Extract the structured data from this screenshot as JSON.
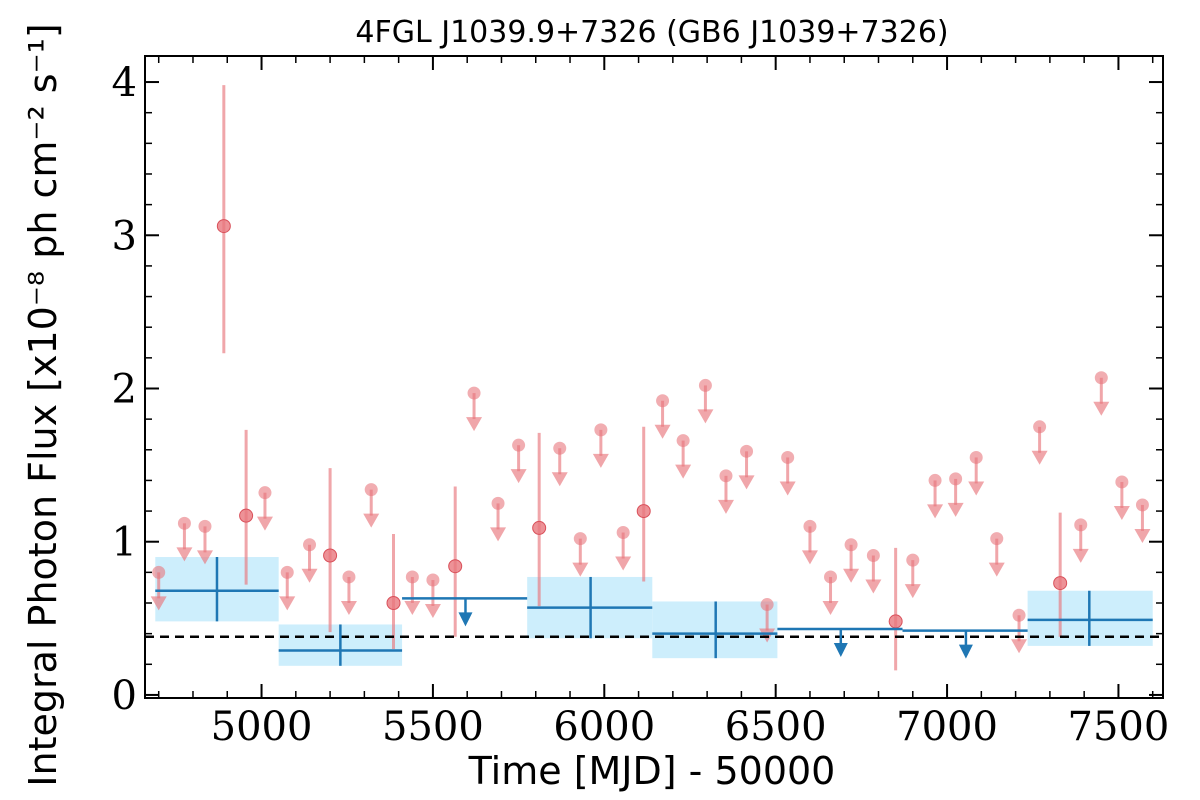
{
  "chart_data": {
    "type": "scatter",
    "title": "4FGL J1039.9+7326 (GB6 J1039+7326)",
    "xlabel": "Time [MJD] - 50000",
    "ylabel": "Integral Photon Flux [x10⁻⁸ ph cm⁻² s⁻¹]",
    "xlim": [
      4660,
      7630
    ],
    "ylim": [
      -0.02,
      4.17
    ],
    "x_ticks": [
      5000,
      5500,
      6000,
      6500,
      7000,
      7500
    ],
    "x_tick_labels": [
      "5000",
      "5500",
      "6000",
      "6500",
      "7000",
      "7500"
    ],
    "y_ticks": [
      0,
      1,
      2,
      3,
      4
    ],
    "y_tick_labels": [
      "0",
      "1",
      "2",
      "3",
      "4"
    ],
    "reference_line": {
      "y": 0.38,
      "style": "dashed",
      "color": "#000000"
    },
    "colors": {
      "short_bins": "#e8777d",
      "long_bins": "#1f77b4",
      "long_bin_band": "#cdeefc"
    },
    "short_bins": {
      "detections": [
        {
          "x": 4890,
          "y": 3.06,
          "err_low": 2.23,
          "err_high": 3.98
        },
        {
          "x": 4955,
          "y": 1.17,
          "err_low": 0.72,
          "err_high": 1.73
        },
        {
          "x": 5200,
          "y": 0.91,
          "err_low": 0.41,
          "err_high": 1.48
        },
        {
          "x": 5385,
          "y": 0.6,
          "err_low": 0.3,
          "err_high": 1.05
        },
        {
          "x": 5565,
          "y": 0.84,
          "err_low": 0.38,
          "err_high": 1.36
        },
        {
          "x": 5810,
          "y": 1.09,
          "err_low": 0.58,
          "err_high": 1.71
        },
        {
          "x": 6115,
          "y": 1.2,
          "err_low": 0.74,
          "err_high": 1.75
        },
        {
          "x": 6850,
          "y": 0.48,
          "err_low": 0.16,
          "err_high": 0.96
        },
        {
          "x": 7330,
          "y": 0.73,
          "err_low": 0.38,
          "err_high": 1.19
        }
      ],
      "upper_limits": [
        {
          "x": 4700,
          "y": 0.8
        },
        {
          "x": 4775,
          "y": 1.12
        },
        {
          "x": 4835,
          "y": 1.1
        },
        {
          "x": 5010,
          "y": 1.32
        },
        {
          "x": 5075,
          "y": 0.8
        },
        {
          "x": 5140,
          "y": 0.98
        },
        {
          "x": 5255,
          "y": 0.77
        },
        {
          "x": 5320,
          "y": 1.34
        },
        {
          "x": 5440,
          "y": 0.77
        },
        {
          "x": 5500,
          "y": 0.75
        },
        {
          "x": 5620,
          "y": 1.97
        },
        {
          "x": 5690,
          "y": 1.25
        },
        {
          "x": 5750,
          "y": 1.63
        },
        {
          "x": 5870,
          "y": 1.61
        },
        {
          "x": 5930,
          "y": 1.02
        },
        {
          "x": 5990,
          "y": 1.73
        },
        {
          "x": 6055,
          "y": 1.06
        },
        {
          "x": 6170,
          "y": 1.92
        },
        {
          "x": 6230,
          "y": 1.66
        },
        {
          "x": 6295,
          "y": 2.02
        },
        {
          "x": 6355,
          "y": 1.43
        },
        {
          "x": 6415,
          "y": 1.59
        },
        {
          "x": 6475,
          "y": 0.59
        },
        {
          "x": 6535,
          "y": 1.55
        },
        {
          "x": 6600,
          "y": 1.1
        },
        {
          "x": 6660,
          "y": 0.77
        },
        {
          "x": 6720,
          "y": 0.98
        },
        {
          "x": 6785,
          "y": 0.91
        },
        {
          "x": 6900,
          "y": 0.88
        },
        {
          "x": 6965,
          "y": 1.4
        },
        {
          "x": 7025,
          "y": 1.41
        },
        {
          "x": 7085,
          "y": 1.55
        },
        {
          "x": 7145,
          "y": 1.02
        },
        {
          "x": 7210,
          "y": 0.52
        },
        {
          "x": 7270,
          "y": 1.75
        },
        {
          "x": 7390,
          "y": 1.11
        },
        {
          "x": 7450,
          "y": 2.07
        },
        {
          "x": 7510,
          "y": 1.39
        },
        {
          "x": 7570,
          "y": 1.24
        }
      ]
    },
    "long_bins": {
      "detections": [
        {
          "x": 4870,
          "x_low": 4690,
          "x_high": 5050,
          "y": 0.68,
          "err_low": 0.48,
          "err_high": 0.9
        },
        {
          "x": 5230,
          "x_low": 5050,
          "x_high": 5410,
          "y": 0.29,
          "err_low": 0.19,
          "err_high": 0.46
        },
        {
          "x": 5960,
          "x_low": 5775,
          "x_high": 6140,
          "y": 0.57,
          "err_low": 0.37,
          "err_high": 0.77
        },
        {
          "x": 6325,
          "x_low": 6140,
          "x_high": 6505,
          "y": 0.4,
          "err_low": 0.24,
          "err_high": 0.61
        },
        {
          "x": 7415,
          "x_low": 7235,
          "x_high": 7600,
          "y": 0.49,
          "err_low": 0.32,
          "err_high": 0.68
        }
      ],
      "upper_limits": [
        {
          "x": 5595,
          "x_low": 5410,
          "x_high": 5775,
          "y": 0.63
        },
        {
          "x": 6690,
          "x_low": 6505,
          "x_high": 6870,
          "y": 0.43
        },
        {
          "x": 7055,
          "x_low": 6870,
          "x_high": 7235,
          "y": 0.42
        }
      ]
    }
  }
}
